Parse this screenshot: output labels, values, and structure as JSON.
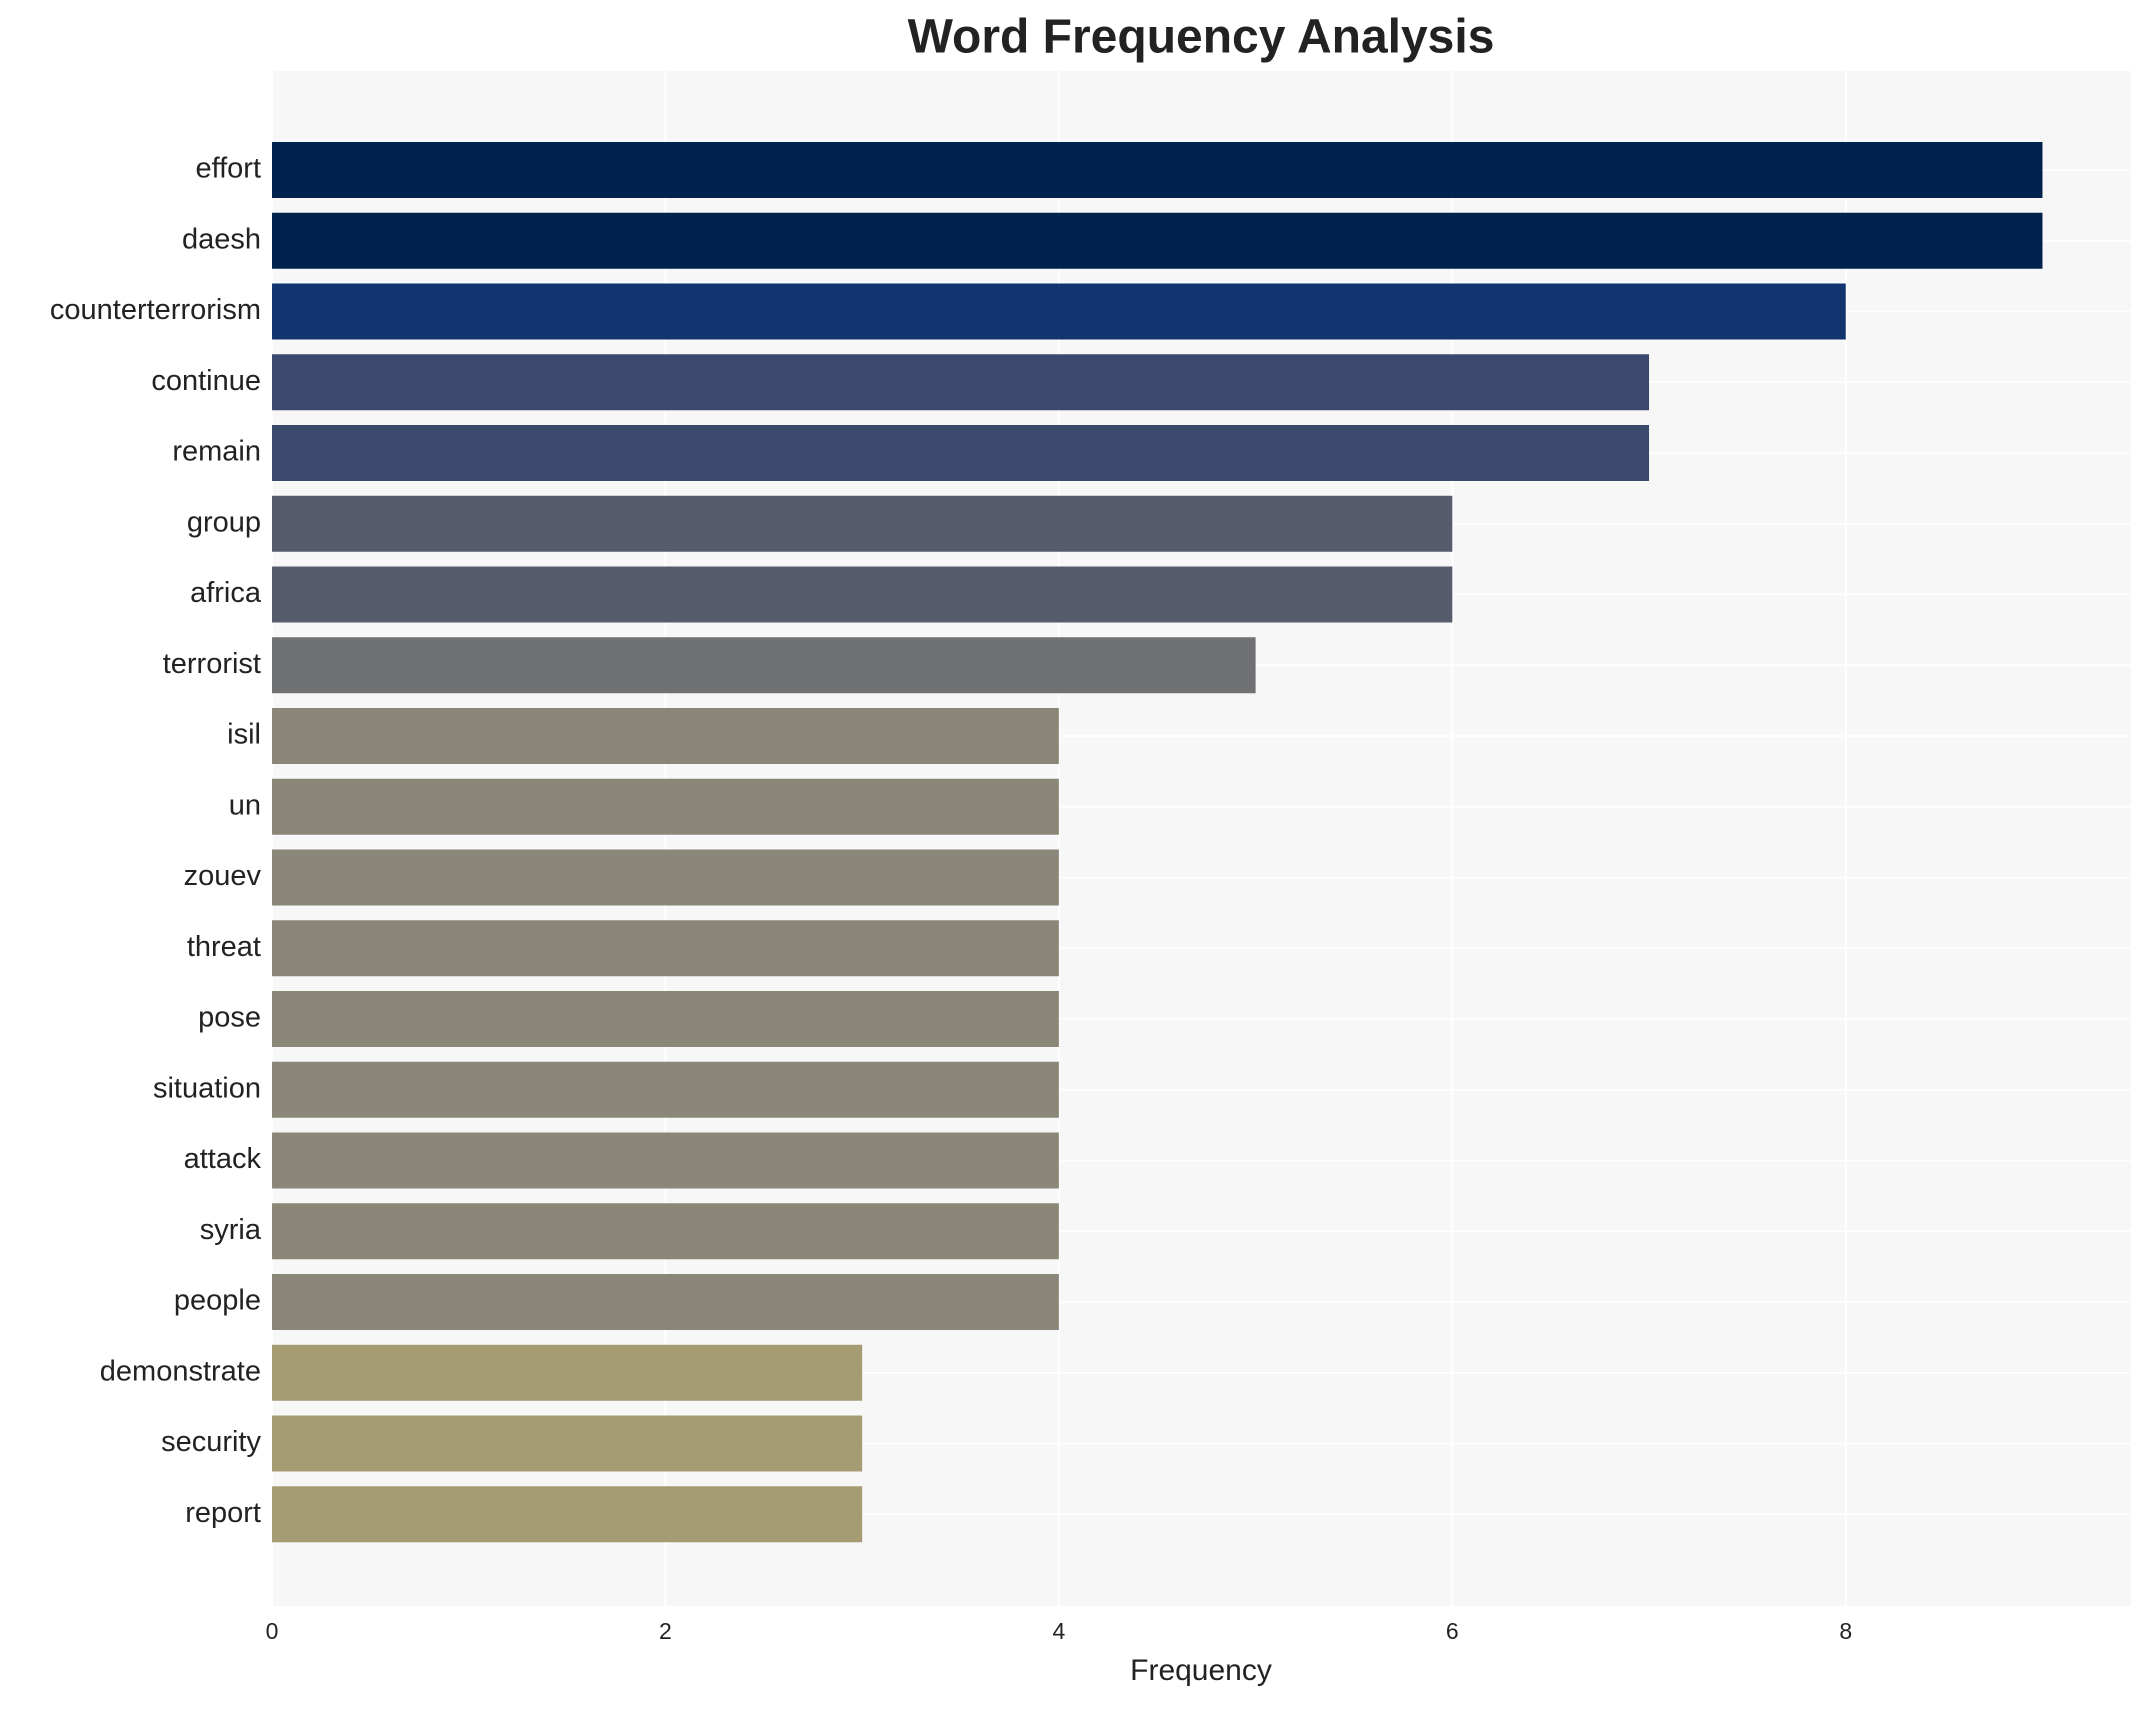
{
  "chart_data": {
    "type": "barh",
    "title": "Word Frequency Analysis",
    "x_label": "Frequency",
    "categories": [
      "effort",
      "daesh",
      "counterterrorism",
      "continue",
      "remain",
      "group",
      "africa",
      "terrorist",
      "isil",
      "un",
      "zouev",
      "threat",
      "pose",
      "situation",
      "attack",
      "syria",
      "people",
      "demonstrate",
      "security",
      "report"
    ],
    "values": [
      9,
      9,
      8,
      7,
      7,
      6,
      6,
      5,
      4,
      4,
      4,
      4,
      4,
      4,
      4,
      4,
      4,
      3,
      3,
      3
    ],
    "colors": [
      "#00224e",
      "#00224e",
      "#123570",
      "#3b496c",
      "#3b496c",
      "#575c6d",
      "#575c6d",
      "#707173",
      "#8a8678",
      "#8a8678",
      "#8a8678",
      "#8a8678",
      "#8a8678",
      "#8a8678",
      "#8a8678",
      "#8a8678",
      "#8a8678",
      "#a59c74",
      "#a59c74",
      "#a59c74"
    ],
    "xlim": [
      0,
      9.45
    ],
    "xticks": [
      0,
      2,
      4,
      6,
      8
    ],
    "grid": true
  }
}
